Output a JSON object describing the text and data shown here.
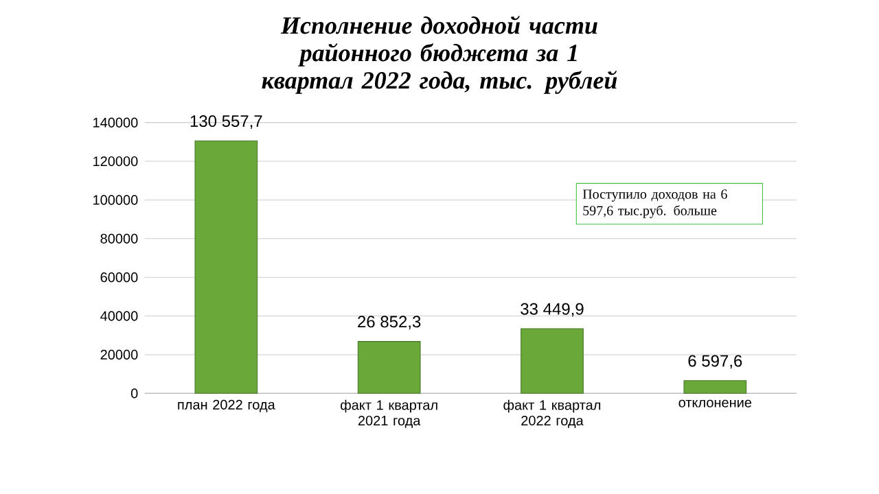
{
  "chart_data": {
    "type": "bar",
    "title": "Исполнение доходной части районного бюджета за 1 квартал 2022 года, тыс. рублей",
    "categories": [
      "план 2022 года",
      "факт 1 квартал 2021 года",
      "факт 1 квартал 2022 года",
      "отклонение"
    ],
    "values": [
      130557.7,
      26852.3,
      33449.9,
      6597.6
    ],
    "value_labels": [
      "130 557,7",
      "26 852,3",
      "33 449,9",
      "6 597,6"
    ],
    "color": "#6aa83a",
    "ylim": [
      0,
      140000
    ],
    "yticks": [
      0,
      20000,
      40000,
      60000,
      80000,
      100000,
      120000,
      140000
    ],
    "grid": "y",
    "annotations": [
      "Поступило  доходов на 6 597,6 тыс.руб.  больше"
    ]
  }
}
